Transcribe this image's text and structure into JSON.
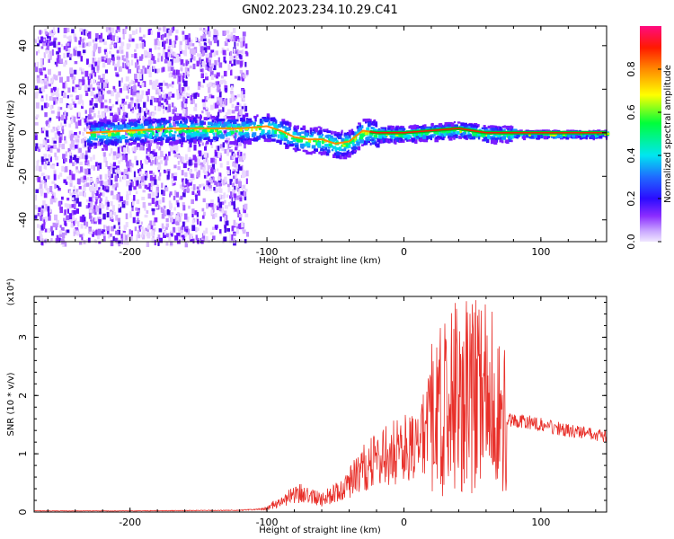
{
  "title": "GN02.2023.234.10.29.C41",
  "chart_data": [
    {
      "type": "heatmap",
      "xlabel": "Height of straight line (km)",
      "ylabel": "Frequency (Hz)",
      "xlim": [
        -270,
        148
      ],
      "ylim": [
        -50,
        49
      ],
      "xticks": [
        "-200",
        "-100",
        "0",
        "100"
      ],
      "yticks": [
        "40",
        "20",
        "0",
        "-20",
        "-40"
      ],
      "ridge": {
        "x": [
          -230,
          -200,
          -170,
          -140,
          -120,
          -100,
          -90,
          -80,
          -70,
          -60,
          -50,
          -40,
          -30,
          -20,
          0,
          20,
          40,
          60,
          80,
          100,
          148
        ],
        "y": [
          0,
          1,
          2,
          2,
          2,
          3,
          1,
          -2,
          -3,
          -3,
          -5,
          -4,
          1,
          0,
          0,
          1,
          2,
          0,
          0,
          0,
          0
        ]
      },
      "colorbar": {
        "label": "Normalized spectral amplitude",
        "ticks": [
          "0.0",
          "0.2",
          "0.4",
          "0.6",
          "0.8"
        ],
        "range": [
          0,
          1
        ]
      }
    },
    {
      "type": "line",
      "xlabel": "Height of straight line (km)",
      "ylabel": "SNR (10 * v/v)",
      "multiplier": "(x10⁴)",
      "xlim": [
        -270,
        148
      ],
      "ylim": [
        0,
        3.7
      ],
      "xticks": [
        "-200",
        "-100",
        "0",
        "100"
      ],
      "yticks": [
        "0",
        "1",
        "2",
        "3"
      ],
      "color": "#e8302a",
      "envelope": {
        "x": [
          -270,
          -200,
          -120,
          -100,
          -90,
          -80,
          -70,
          -60,
          -50,
          -40,
          -30,
          -20,
          -10,
          0,
          10,
          20,
          30,
          40,
          50,
          60,
          70,
          80,
          90,
          100,
          110,
          120,
          148
        ],
        "y": [
          0.02,
          0.02,
          0.03,
          0.06,
          0.2,
          0.3,
          0.35,
          0.2,
          0.35,
          0.5,
          0.75,
          0.9,
          1.0,
          1.1,
          1.3,
          1.6,
          1.8,
          2.0,
          2.1,
          2.0,
          1.7,
          1.55,
          1.55,
          1.5,
          1.45,
          1.4,
          1.3
        ]
      }
    }
  ]
}
